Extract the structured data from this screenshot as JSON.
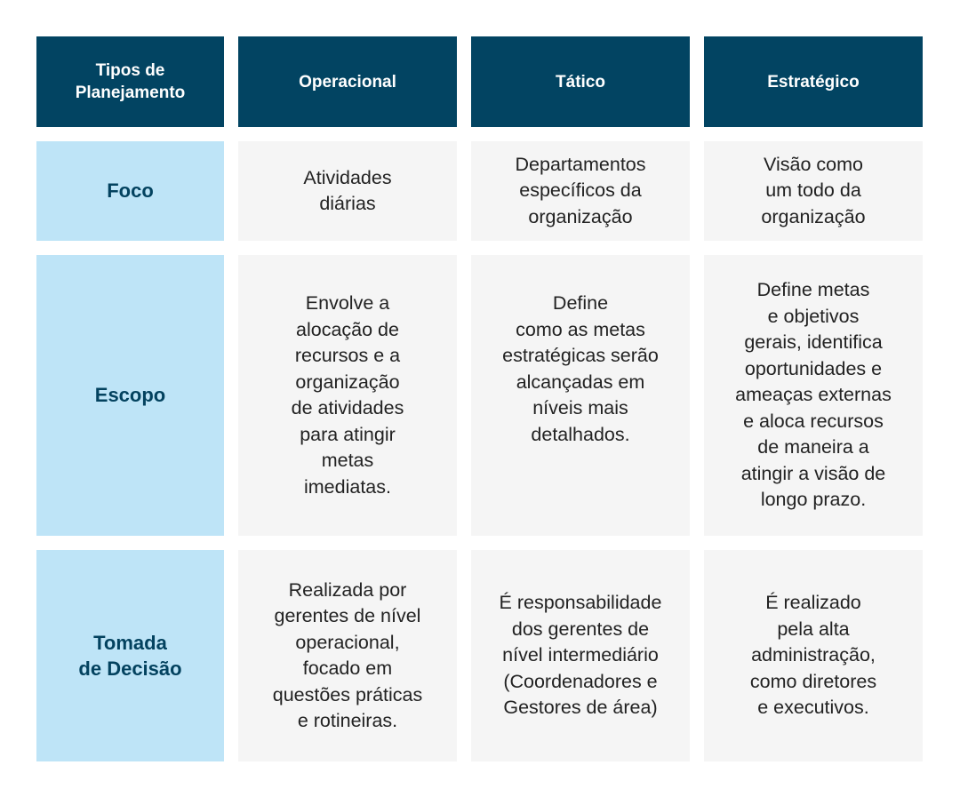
{
  "header": [
    "Tipos de\nPlanejamento",
    "Operacional",
    "Tático",
    "Estratégico"
  ],
  "rows": [
    {
      "label": "Foco",
      "cells": [
        "Atividades\ndiárias",
        "Departamentos\nespecíficos da\norganização",
        "Visão como\num todo da\norganização"
      ]
    },
    {
      "label": "Escopo",
      "cells": [
        "Envolve a\nalocação de\nrecursos e a\norganização\nde atividades\npara atingir\nmetas\nimediatas.",
        "Define\ncomo as metas\nestratégicas serão\nalcançadas em\nníveis mais\ndetalhados.\n\n\n",
        "Define metas\ne objetivos\ngerais, identifica\noportunidades e\nameaças externas\ne aloca recursos\nde maneira a\natingir a visão de\nlongo prazo."
      ]
    },
    {
      "label": "Tomada\nde Decisão",
      "cells": [
        "Realizada por\ngerentes de nível\noperacional,\nfocado em\nquestões práticas\ne rotineiras.",
        "É responsabilidade\ndos gerentes de\nnível intermediário\n(Coordenadores e\nGestores de área)",
        "É realizado\npela alta\nadministração,\ncomo diretores\ne executivos."
      ]
    }
  ],
  "colors": {
    "header_bg": "#024462",
    "label_bg": "#bee4f7",
    "label_text": "#03425f",
    "cell_bg": "#f5f5f5"
  }
}
